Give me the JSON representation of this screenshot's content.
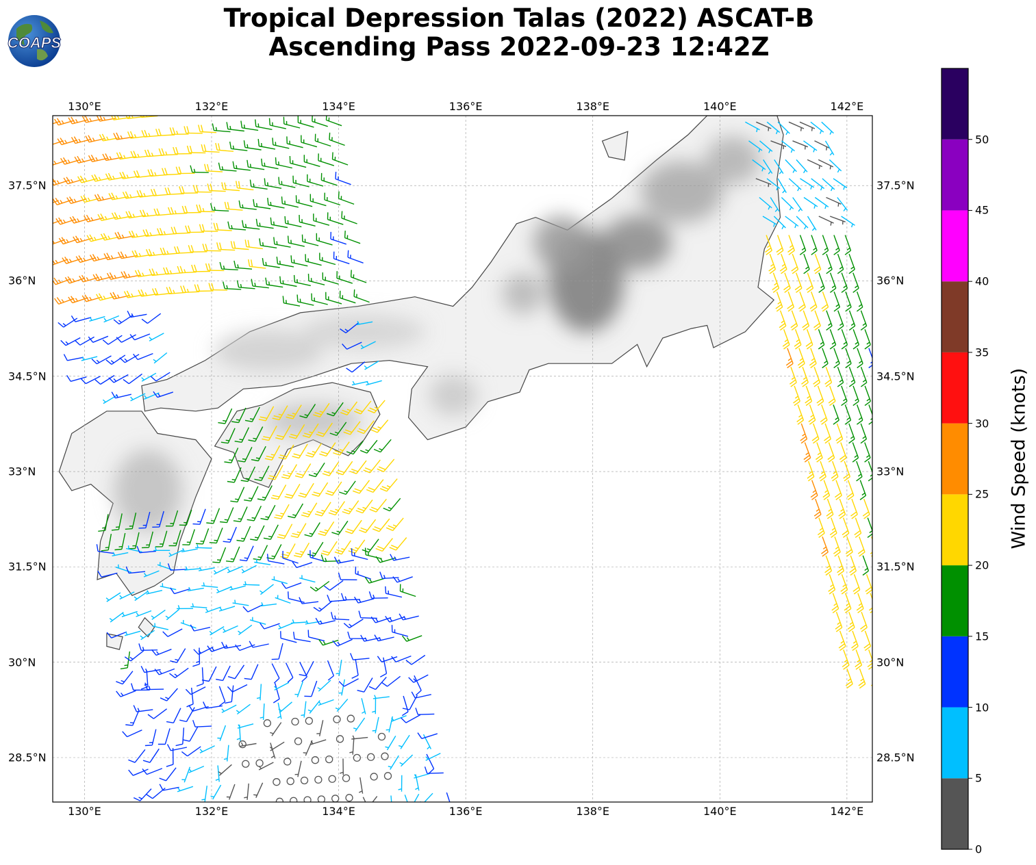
{
  "title": {
    "line1": "Tropical Depression Talas (2022) ASCAT-B",
    "line2": "Ascending Pass 2022-09-23 12:42Z"
  },
  "logo": {
    "text": "COAPS"
  },
  "map": {
    "lon_range": [
      129.5,
      142.4
    ],
    "lat_range": [
      27.8,
      38.6
    ],
    "lon_ticks": [
      {
        "value": 130,
        "label": "130°E"
      },
      {
        "value": 132,
        "label": "132°E"
      },
      {
        "value": 134,
        "label": "134°E"
      },
      {
        "value": 136,
        "label": "136°E"
      },
      {
        "value": 138,
        "label": "138°E"
      },
      {
        "value": 140,
        "label": "140°E"
      },
      {
        "value": 142,
        "label": "142°E"
      }
    ],
    "lat_ticks": [
      {
        "value": 37.5,
        "label": "37.5°N"
      },
      {
        "value": 36,
        "label": "36°N"
      },
      {
        "value": 34.5,
        "label": "34.5°N"
      },
      {
        "value": 33,
        "label": "33°N"
      },
      {
        "value": 31.5,
        "label": "31.5°N"
      },
      {
        "value": 30,
        "label": "30°N"
      },
      {
        "value": 28.5,
        "label": "28.5°N"
      }
    ],
    "grid": true
  },
  "colorbar": {
    "label": "Wind Speed (knots)",
    "bins": [
      {
        "min": 0,
        "max": 5,
        "color": "#555555"
      },
      {
        "min": 5,
        "max": 10,
        "color": "#00bfff"
      },
      {
        "min": 10,
        "max": 15,
        "color": "#0033ff"
      },
      {
        "min": 15,
        "max": 20,
        "color": "#009000"
      },
      {
        "min": 20,
        "max": 25,
        "color": "#ffd700"
      },
      {
        "min": 25,
        "max": 30,
        "color": "#ff8c00"
      },
      {
        "min": 30,
        "max": 35,
        "color": "#ff1010"
      },
      {
        "min": 35,
        "max": 40,
        "color": "#7f3a28"
      },
      {
        "min": 40,
        "max": 45,
        "color": "#ff00ff"
      },
      {
        "min": 45,
        "max": 50,
        "color": "#8a00c0"
      },
      {
        "min": 50,
        "max": 55,
        "color": "#2a0060"
      }
    ],
    "ticks": [
      "0",
      "5",
      "10",
      "15",
      "20",
      "25",
      "30",
      "35",
      "40",
      "45",
      "50"
    ]
  }
}
